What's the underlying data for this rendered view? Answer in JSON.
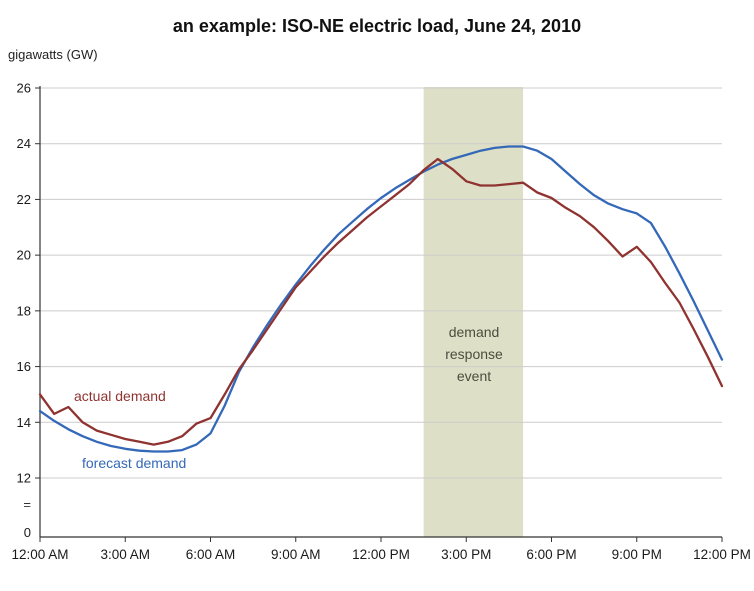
{
  "title": "an example: ISO-NE electric load, June 24, 2010",
  "unit_label": "gigawatts (GW)",
  "axis_break_symbol": "=",
  "annotations": {
    "actual_label": "actual demand",
    "forecast_label": "forecast demand",
    "band_label_lines": [
      "demand",
      "response",
      "event"
    ]
  },
  "colors": {
    "forecast_line": "#3468b8",
    "actual_line": "#8f3330",
    "band_fill": "#dde0c6",
    "band_text": "#4c4c3f",
    "gridline": "#cccccc",
    "axis": "#333333",
    "tick_text": "#1a1a1a"
  },
  "chart_data": {
    "type": "line",
    "title": "an example: ISO-NE electric load, June 24, 2010",
    "ylabel": "gigawatts (GW)",
    "x_unit": "hours after 12:00 AM",
    "grid": true,
    "x_tick_hours": [
      0,
      3,
      6,
      9,
      12,
      15,
      18,
      21,
      24
    ],
    "x_tick_labels": [
      "12:00 AM",
      "3:00 AM",
      "6:00 AM",
      "9:00 AM",
      "12:00 PM",
      "3:00 PM",
      "6:00 PM",
      "9:00 PM",
      "12:00 PM"
    ],
    "y_ticks": [
      26,
      24,
      22,
      20,
      18,
      16,
      14,
      12
    ],
    "y_base_label": "0",
    "ylim_display": [
      12,
      26
    ],
    "axis_break": true,
    "band": {
      "label": "demand response event",
      "start_hour": 13.5,
      "end_hour": 17.0,
      "color": "#dde0c6"
    },
    "x_hours": [
      0,
      0.5,
      1,
      1.5,
      2,
      2.5,
      3,
      3.5,
      4,
      4.5,
      5,
      5.5,
      6,
      6.5,
      7,
      7.5,
      8,
      8.5,
      9,
      9.5,
      10,
      10.5,
      11,
      11.5,
      12,
      12.5,
      13,
      13.5,
      14,
      14.5,
      15,
      15.5,
      16,
      16.5,
      17,
      17.5,
      18,
      18.5,
      19,
      19.5,
      20,
      20.5,
      21,
      21.5,
      22,
      22.5,
      23,
      23.5,
      24
    ],
    "series": [
      {
        "name": "forecast demand",
        "color": "#3468b8",
        "values": [
          14.4,
          14.05,
          13.75,
          13.5,
          13.3,
          13.15,
          13.05,
          12.98,
          12.95,
          12.95,
          13.0,
          13.2,
          13.6,
          14.6,
          15.8,
          16.7,
          17.5,
          18.25,
          18.95,
          19.6,
          20.2,
          20.75,
          21.2,
          21.65,
          22.05,
          22.4,
          22.7,
          23.0,
          23.25,
          23.45,
          23.6,
          23.75,
          23.85,
          23.9,
          23.9,
          23.75,
          23.45,
          23.0,
          22.55,
          22.15,
          21.85,
          21.65,
          21.5,
          21.15,
          20.3,
          19.35,
          18.35,
          17.3,
          16.25
        ]
      },
      {
        "name": "actual demand",
        "color": "#8f3330",
        "values": [
          15.0,
          14.3,
          14.55,
          14.0,
          13.7,
          13.55,
          13.4,
          13.3,
          13.2,
          13.3,
          13.5,
          13.95,
          14.15,
          15.0,
          15.9,
          16.6,
          17.35,
          18.1,
          18.85,
          19.4,
          19.95,
          20.45,
          20.9,
          21.35,
          21.75,
          22.15,
          22.55,
          23.05,
          23.45,
          23.1,
          22.65,
          22.5,
          22.5,
          22.55,
          22.6,
          22.25,
          22.05,
          21.7,
          21.4,
          21.0,
          20.5,
          19.95,
          20.3,
          19.75,
          19.0,
          18.3,
          17.35,
          16.35,
          15.3
        ]
      }
    ]
  }
}
